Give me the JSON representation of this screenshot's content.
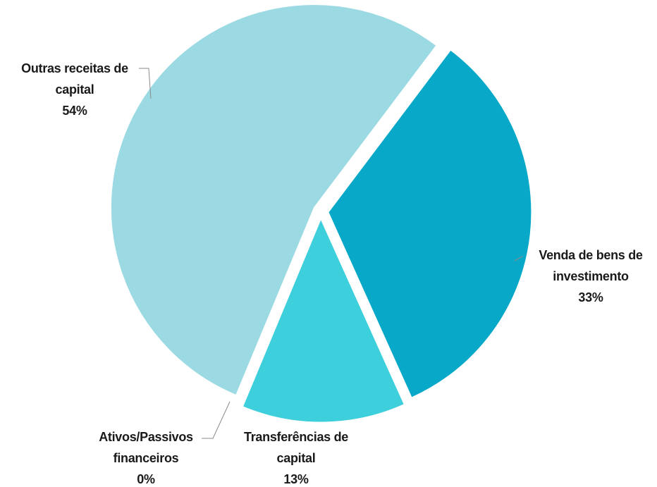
{
  "chart_data": {
    "type": "pie",
    "categories": [
      "Venda de bens de investimento",
      "Transferências de capital",
      "Ativos/Passivos financeiros",
      "Outras receitas de capital"
    ],
    "values": [
      33,
      13,
      0,
      54
    ],
    "value_labels": [
      "33%",
      "13%",
      "0%",
      "54%"
    ],
    "colors": [
      "#08a8c8",
      "#3dcfdc",
      "#6fd6e2",
      "#9cdae3"
    ]
  }
}
